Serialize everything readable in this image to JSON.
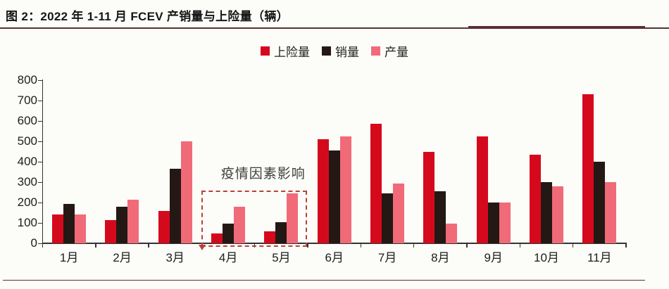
{
  "title": "图 2：2022 年 1-11 月 FCEV 产销量与上险量（辆）",
  "colors": {
    "insurance_red": "#d40a1c",
    "sales_black": "#241815",
    "production_pink": "#f16a77",
    "annotation_dash": "#b8423a",
    "rule_dark": "#55342f",
    "rule_accent": "#5d2c39"
  },
  "chart_data": {
    "type": "bar",
    "categories": [
      "1月",
      "2月",
      "3月",
      "4月",
      "5月",
      "6月",
      "7月",
      "8月",
      "9月",
      "10月",
      "11月"
    ],
    "series": [
      {
        "name": "上险量",
        "color": "#d40a1c",
        "values": [
          140,
          115,
          157,
          50,
          57,
          510,
          585,
          447,
          525,
          433,
          730
        ]
      },
      {
        "name": "销量",
        "color": "#241815",
        "values": [
          193,
          180,
          365,
          95,
          105,
          455,
          245,
          255,
          200,
          300,
          400
        ]
      },
      {
        "name": "产量",
        "color": "#f16a77",
        "values": [
          140,
          215,
          500,
          178,
          245,
          525,
          293,
          97,
          200,
          278,
          300
        ]
      }
    ],
    "ylabel": "",
    "xlabel": "",
    "ylim": [
      0,
      800
    ],
    "ytick_step": 100,
    "ytick_labels": [
      "0",
      "100",
      "200",
      "300",
      "400",
      "500",
      "600",
      "700",
      "800"
    ],
    "grid": false,
    "legend_position": "top-center",
    "annotation": {
      "text": "疫情因素影响",
      "covers_categories": [
        "4月",
        "5月"
      ],
      "box_top_value": 258
    }
  }
}
